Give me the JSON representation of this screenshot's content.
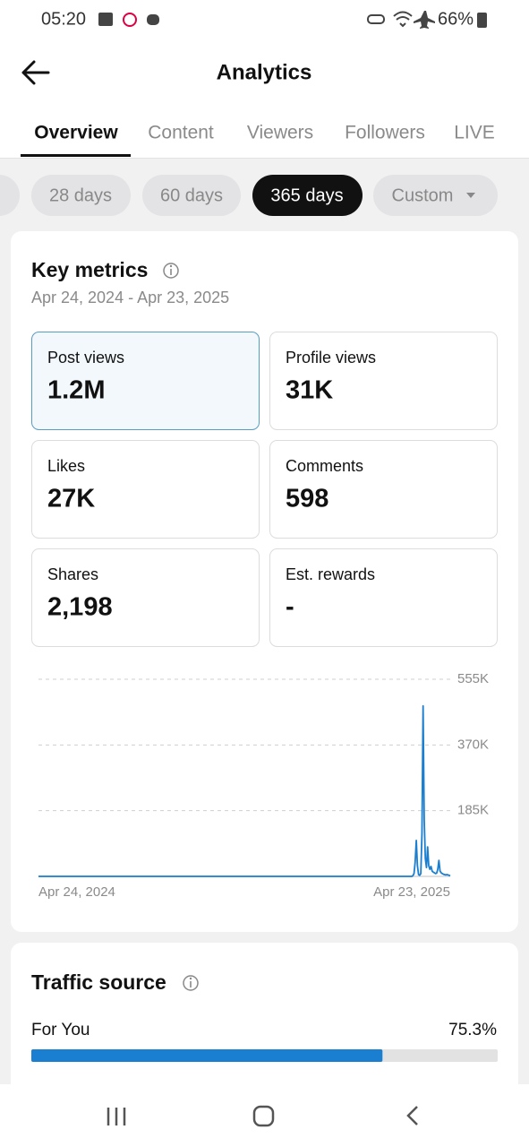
{
  "status_bar": {
    "time": "05:20",
    "battery": "66%"
  },
  "header": {
    "title": "Analytics"
  },
  "tabs": [
    "Overview",
    "Content",
    "Viewers",
    "Followers",
    "LIVE"
  ],
  "ranges": [
    "28 days",
    "60 days",
    "365 days",
    "Custom"
  ],
  "key_metrics": {
    "title": "Key metrics",
    "period": "Apr 24, 2024 - Apr 23, 2025",
    "metrics": [
      {
        "label": "Post views",
        "value": "1.2M"
      },
      {
        "label": "Profile views",
        "value": "31K"
      },
      {
        "label": "Likes",
        "value": "27K"
      },
      {
        "label": "Comments",
        "value": "598"
      },
      {
        "label": "Shares",
        "value": "2,198"
      },
      {
        "label": "Est. rewards",
        "value": "-"
      }
    ]
  },
  "chart_data": {
    "type": "line",
    "color": "#1a7fd0",
    "categories": [
      "Apr 24, 2024",
      null,
      null,
      null,
      null,
      null,
      null,
      null,
      null,
      null,
      null,
      null,
      null,
      null,
      null,
      null,
      null,
      null,
      null,
      null,
      null,
      null,
      null,
      null,
      null,
      null,
      null,
      null,
      null,
      null,
      null,
      null,
      null,
      null,
      null,
      null,
      null,
      null,
      null,
      null,
      null,
      null,
      null,
      null,
      null,
      null,
      null,
      null,
      null,
      null,
      null,
      null,
      null,
      null,
      null,
      null,
      null,
      null,
      null,
      null,
      null,
      null,
      null,
      null,
      null,
      null,
      null,
      null,
      null,
      null,
      null,
      null,
      null,
      null,
      null,
      null,
      null,
      null,
      null,
      null,
      null,
      null,
      null,
      null,
      null,
      null,
      null,
      null,
      null,
      null,
      null,
      null,
      null,
      null,
      null,
      null,
      null,
      null,
      null,
      null,
      null,
      null,
      null,
      null,
      null,
      null,
      null,
      null,
      null,
      null,
      null,
      null,
      null,
      null,
      null,
      null,
      null,
      null,
      null,
      null,
      null,
      null,
      null,
      null,
      null,
      null,
      null,
      null,
      null,
      null,
      null,
      null,
      null,
      null,
      null,
      null,
      null,
      null,
      null,
      null,
      null,
      null,
      null,
      null,
      null,
      null,
      null,
      null,
      null,
      null,
      null,
      null,
      null,
      null,
      null,
      null,
      null,
      null,
      null,
      null,
      null,
      null,
      null,
      null,
      null,
      null,
      null,
      null,
      null,
      null,
      null,
      null,
      null,
      null,
      null,
      null,
      null,
      null,
      null,
      null,
      null,
      null,
      null,
      null,
      null,
      null,
      null,
      null,
      null,
      null,
      null,
      null,
      null,
      null,
      null,
      null,
      null,
      null,
      null,
      null,
      null,
      null,
      null,
      null,
      null,
      null,
      null,
      null,
      null,
      null,
      null,
      null,
      null,
      null,
      null,
      null,
      null,
      null,
      null,
      null,
      null,
      null,
      null,
      null,
      null,
      null,
      null,
      null,
      null,
      null,
      null,
      null,
      null,
      null,
      null,
      null,
      null,
      null,
      null,
      null,
      null,
      null,
      null,
      null,
      null,
      null,
      null,
      null,
      null,
      null,
      null,
      null,
      null,
      null,
      null,
      null,
      null,
      null,
      null,
      null,
      null,
      null,
      null,
      null,
      null,
      null,
      null,
      null,
      null,
      null,
      null,
      null,
      null,
      null,
      null,
      null,
      null,
      null,
      null,
      null,
      null,
      null,
      null,
      null,
      null,
      null,
      null,
      null,
      null,
      null,
      null,
      null,
      null,
      null,
      null,
      null,
      null,
      null,
      null,
      null,
      null,
      null,
      null,
      null,
      null,
      null,
      null,
      null,
      null,
      null,
      null,
      null,
      null,
      null,
      null,
      null,
      null,
      null,
      null,
      null,
      null,
      null,
      null,
      null,
      null,
      null,
      null,
      null,
      null,
      null,
      null,
      null,
      null,
      null,
      null,
      null,
      null,
      null,
      null,
      null,
      null,
      null,
      null,
      null,
      null,
      null,
      null,
      null,
      null,
      null,
      null,
      null,
      null,
      null,
      null,
      null,
      null,
      null,
      null,
      null,
      null,
      null,
      null,
      null,
      "Apr 23, 2025"
    ],
    "values": [
      0,
      0,
      0,
      0,
      0,
      0,
      0,
      0,
      0,
      0,
      0,
      0,
      0,
      0,
      0,
      0,
      0,
      0,
      0,
      0,
      0,
      0,
      0,
      0,
      0,
      0,
      0,
      0,
      0,
      0,
      0,
      0,
      0,
      0,
      0,
      0,
      0,
      0,
      0,
      0,
      0,
      0,
      0,
      0,
      0,
      0,
      0,
      0,
      0,
      0,
      0,
      0,
      0,
      0,
      0,
      0,
      0,
      0,
      0,
      0,
      0,
      0,
      0,
      0,
      0,
      0,
      0,
      0,
      0,
      0,
      0,
      0,
      0,
      0,
      0,
      0,
      0,
      0,
      0,
      0,
      0,
      0,
      0,
      0,
      0,
      0,
      0,
      0,
      0,
      0,
      0,
      0,
      0,
      0,
      0,
      0,
      0,
      0,
      0,
      0,
      0,
      0,
      0,
      0,
      0,
      0,
      0,
      0,
      0,
      0,
      0,
      0,
      0,
      0,
      0,
      0,
      0,
      0,
      0,
      0,
      0,
      0,
      0,
      0,
      0,
      0,
      0,
      0,
      0,
      0,
      0,
      0,
      0,
      0,
      0,
      0,
      0,
      0,
      0,
      0,
      0,
      0,
      0,
      0,
      0,
      0,
      0,
      0,
      0,
      0,
      0,
      0,
      0,
      0,
      0,
      0,
      0,
      0,
      0,
      0,
      0,
      0,
      0,
      0,
      0,
      0,
      0,
      0,
      0,
      0,
      0,
      0,
      0,
      0,
      0,
      0,
      0,
      0,
      0,
      0,
      0,
      0,
      0,
      0,
      0,
      0,
      0,
      0,
      0,
      0,
      0,
      0,
      0,
      0,
      0,
      0,
      0,
      0,
      0,
      0,
      0,
      0,
      0,
      0,
      0,
      0,
      0,
      0,
      0,
      0,
      0,
      0,
      0,
      0,
      0,
      0,
      0,
      0,
      0,
      0,
      0,
      0,
      0,
      0,
      0,
      0,
      0,
      0,
      0,
      0,
      0,
      0,
      0,
      0,
      0,
      0,
      0,
      0,
      0,
      0,
      0,
      0,
      0,
      0,
      0,
      0,
      0,
      0,
      0,
      0,
      0,
      0,
      0,
      0,
      0,
      0,
      0,
      0,
      0,
      0,
      0,
      0,
      0,
      0,
      0,
      0,
      0,
      0,
      0,
      0,
      0,
      0,
      0,
      0,
      0,
      0,
      0,
      0,
      0,
      0,
      0,
      0,
      0,
      0,
      0,
      0,
      0,
      0,
      0,
      0,
      0,
      0,
      0,
      0,
      0,
      0,
      0,
      0,
      0,
      0,
      0,
      0,
      0,
      0,
      0,
      0,
      0,
      0,
      0,
      0,
      0,
      0,
      0,
      0,
      0,
      0,
      0,
      0,
      0,
      0,
      0,
      0,
      0,
      0,
      0,
      0,
      0,
      0,
      0,
      0,
      0,
      2000,
      8000,
      40000,
      101000,
      30000,
      5000,
      3000,
      8000,
      120000,
      480000,
      160000,
      50000,
      25000,
      83000,
      30000,
      20000,
      28000,
      15000,
      12000,
      10000,
      8000,
      9000,
      20000,
      45000,
      15000,
      10000,
      8000,
      6000,
      5000,
      4000,
      5000,
      4000,
      3000,
      2000
    ],
    "ylim": [
      0,
      555000
    ],
    "yticks": [
      {
        "value": 185000,
        "label": "185K"
      },
      {
        "value": 370000,
        "label": "370K"
      },
      {
        "value": 555000,
        "label": "555K"
      }
    ],
    "grid": true
  },
  "traffic_source": {
    "title": "Traffic source",
    "sources": [
      {
        "name": "For You",
        "value": 75.3,
        "label": "75.3%"
      }
    ]
  }
}
